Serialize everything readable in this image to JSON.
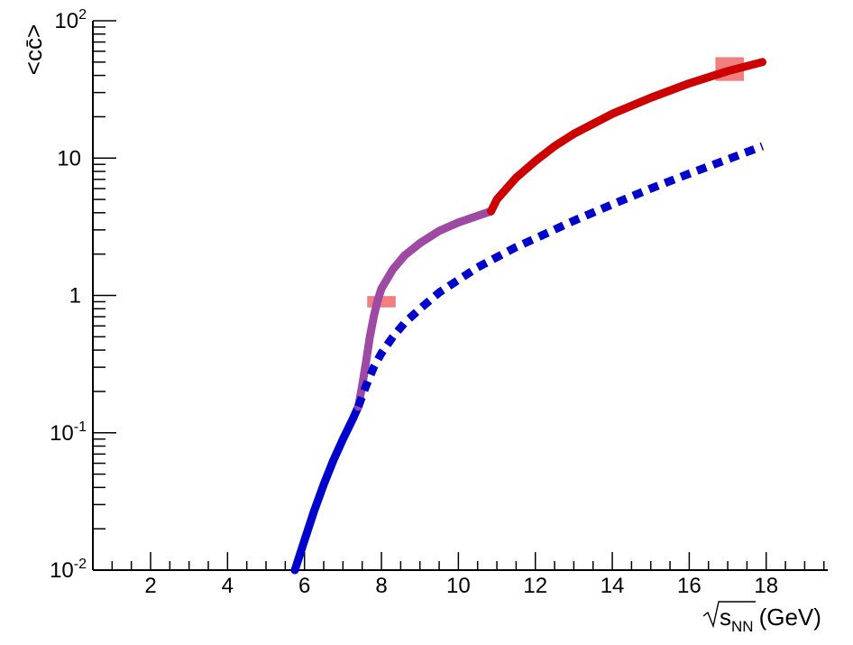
{
  "chart_data": {
    "type": "line",
    "xlabel": "s",
    "xlabel_sub": "NN",
    "xlabel_unit": "(GeV)",
    "ylabel": "<cc̄>",
    "xlim": [
      0.5,
      19.6
    ],
    "ylim": [
      0.01,
      100
    ],
    "y_scale": "log",
    "grid": false,
    "legend": "none",
    "x_ticks": [
      {
        "value": 2,
        "label": "2"
      },
      {
        "value": 4,
        "label": "4"
      },
      {
        "value": 6,
        "label": "6"
      },
      {
        "value": 8,
        "label": "8"
      },
      {
        "value": 10,
        "label": "10"
      },
      {
        "value": 12,
        "label": "12"
      },
      {
        "value": 14,
        "label": "14"
      },
      {
        "value": 16,
        "label": "16"
      },
      {
        "value": 18,
        "label": "18"
      }
    ],
    "y_ticks": [
      {
        "value": 0.01,
        "base": "10",
        "exp": "-2"
      },
      {
        "value": 0.1,
        "base": "10",
        "exp": "-1"
      },
      {
        "value": 1,
        "base": "1",
        "exp": ""
      },
      {
        "value": 10,
        "base": "10",
        "exp": ""
      },
      {
        "value": 100,
        "base": "10",
        "exp": "2"
      }
    ],
    "series": [
      {
        "style": "solid",
        "color": "#0000cc",
        "x": [
          5.75,
          6.0,
          6.25,
          6.5,
          6.75,
          7.0,
          7.25,
          7.4
        ],
        "y": [
          0.01,
          0.0165,
          0.027,
          0.042,
          0.063,
          0.09,
          0.125,
          0.155
        ]
      },
      {
        "style": "solid",
        "color": "#9e4aa4",
        "x": [
          7.4,
          7.5,
          7.6,
          7.7,
          7.8,
          7.9,
          8.0,
          8.3,
          8.6,
          9.0,
          9.5,
          10.0,
          10.5,
          10.85
        ],
        "y": [
          0.155,
          0.22,
          0.33,
          0.5,
          0.7,
          0.92,
          1.12,
          1.55,
          1.95,
          2.4,
          2.95,
          3.4,
          3.8,
          4.1
        ]
      },
      {
        "style": "solid",
        "color": "#cc0000",
        "x": [
          10.85,
          11.0,
          11.5,
          12.0,
          12.5,
          13.0,
          14.0,
          15.0,
          16.0,
          17.0,
          17.9
        ],
        "y": [
          4.1,
          5.0,
          7.2,
          9.5,
          12.2,
          15.0,
          21.0,
          27.5,
          35.0,
          43.0,
          50.0
        ]
      },
      {
        "style": "dashed",
        "color": "#0000cc",
        "x": [
          7.4,
          7.6,
          7.8,
          8.0,
          8.3,
          8.6,
          9.0,
          9.5,
          10.0,
          10.5,
          11.0,
          11.5,
          12.0,
          13.0,
          14.0,
          15.0,
          16.0,
          17.0,
          17.9
        ],
        "y": [
          0.155,
          0.22,
          0.3,
          0.38,
          0.5,
          0.63,
          0.8,
          1.05,
          1.3,
          1.6,
          1.9,
          2.25,
          2.6,
          3.5,
          4.6,
          6.0,
          7.7,
          9.8,
          12.2
        ]
      }
    ],
    "markers": [
      {
        "x": 8.0,
        "y": 0.9,
        "x_halfwidth": 0.37,
        "y_ratio": 1.1,
        "color": "#f08080"
      },
      {
        "x": 17.05,
        "y": 44.5,
        "x_halfwidth": 0.37,
        "y_ratio": 1.22,
        "color": "#f08080"
      }
    ]
  }
}
